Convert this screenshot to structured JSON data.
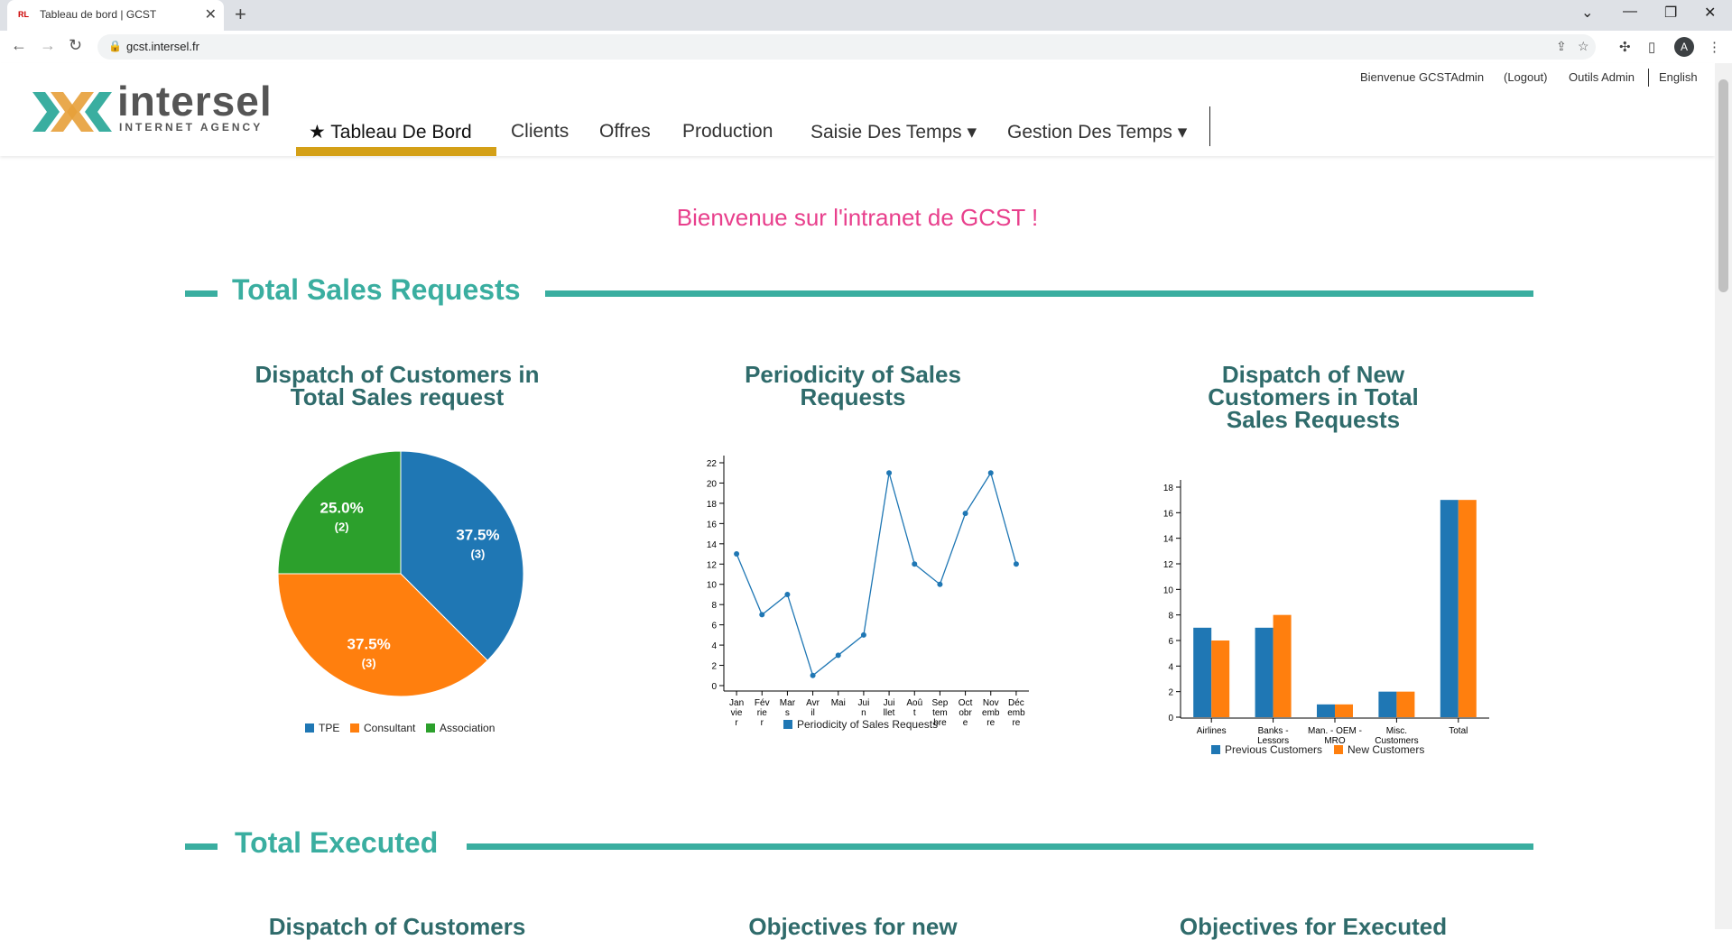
{
  "browser": {
    "tab_title": "Tableau de bord | GCST",
    "favicon_text": "RL",
    "url": "gcst.intersel.fr",
    "profile_initial": "A",
    "new_tab": "+",
    "close_tab": "✕"
  },
  "site": {
    "logo": {
      "word": "intersel",
      "tagline": "INTERNET AGENCY"
    },
    "top_links": {
      "welcome": "Bienvenue GCSTAdmin",
      "logout": "(Logout)",
      "admin": "Outils Admin",
      "language": "English"
    },
    "menu": [
      {
        "label": "★ Tableau De Bord",
        "active": true
      },
      {
        "label": "Clients"
      },
      {
        "label": "Offres"
      },
      {
        "label": "Production"
      },
      {
        "label": "Saisie Des Temps ▾"
      },
      {
        "label": "Gestion Des Temps ▾"
      }
    ],
    "accent_color": "#3aaea0",
    "active_color": "#d4a017"
  },
  "main": {
    "welcome": "Bienvenue sur l'intranet de GCST !",
    "sections": [
      {
        "title": "Total Sales Requests"
      },
      {
        "title": "Total Executed"
      }
    ],
    "lower_titles": [
      "Dispatch of Customers",
      "Objectives for new",
      "Objectives for Executed"
    ]
  },
  "chart_data": [
    {
      "type": "pie",
      "title": "Dispatch of Customers in Total Sales request",
      "slices": [
        {
          "label": "TPE",
          "value": 3,
          "percent": "37.5%",
          "count": "(3)",
          "color": "#1f77b4"
        },
        {
          "label": "Consultant",
          "value": 3,
          "percent": "37.5%",
          "count": "(3)",
          "color": "#ff7f0e"
        },
        {
          "label": "Association",
          "value": 2,
          "percent": "25.0%",
          "count": "(2)",
          "color": "#2ca02c"
        }
      ]
    },
    {
      "type": "line",
      "title": "Periodicity of Sales Requests",
      "x": [
        [
          "Jan",
          "vie",
          "r"
        ],
        [
          "Fév",
          "rie",
          "r"
        ],
        [
          "Mar",
          "s"
        ],
        [
          "Avr",
          "il"
        ],
        [
          "Mai"
        ],
        [
          "Jui",
          "n"
        ],
        [
          "Jui",
          "llet"
        ],
        [
          "Aoû",
          "t"
        ],
        [
          "Sep",
          "tem",
          "bre"
        ],
        [
          "Oct",
          "obr",
          "e"
        ],
        [
          "Nov",
          "emb",
          "re"
        ],
        [
          "Déc",
          "emb",
          "re"
        ]
      ],
      "series": [
        {
          "name": "Periodicity of Sales Requests",
          "values": [
            13,
            7,
            9,
            1,
            3,
            5,
            21,
            12,
            10,
            17,
            21,
            12
          ],
          "color": "#1f77b4"
        }
      ],
      "ylim": [
        0,
        22
      ],
      "yticks": [
        0,
        2,
        4,
        6,
        8,
        10,
        12,
        14,
        16,
        18,
        20,
        22
      ],
      "legend": "bottom"
    },
    {
      "type": "bar",
      "title": "Dispatch of New Customers in Total Sales Requests",
      "categories": [
        [
          "Airlines"
        ],
        [
          "Banks -",
          "Lessors"
        ],
        [
          "Man. - OEM -",
          "MRO"
        ],
        [
          "Misc.",
          "Customers"
        ],
        [
          "Total"
        ]
      ],
      "series": [
        {
          "name": "Previous Customers",
          "values": [
            7,
            7,
            1,
            2,
            17
          ],
          "color": "#1f77b4"
        },
        {
          "name": "New Customers",
          "values": [
            6,
            8,
            1,
            2,
            17
          ],
          "color": "#ff7f0e"
        }
      ],
      "ylim": [
        0,
        18
      ],
      "yticks": [
        0,
        2,
        4,
        6,
        8,
        10,
        12,
        14,
        16,
        18
      ],
      "legend": "bottom"
    }
  ]
}
